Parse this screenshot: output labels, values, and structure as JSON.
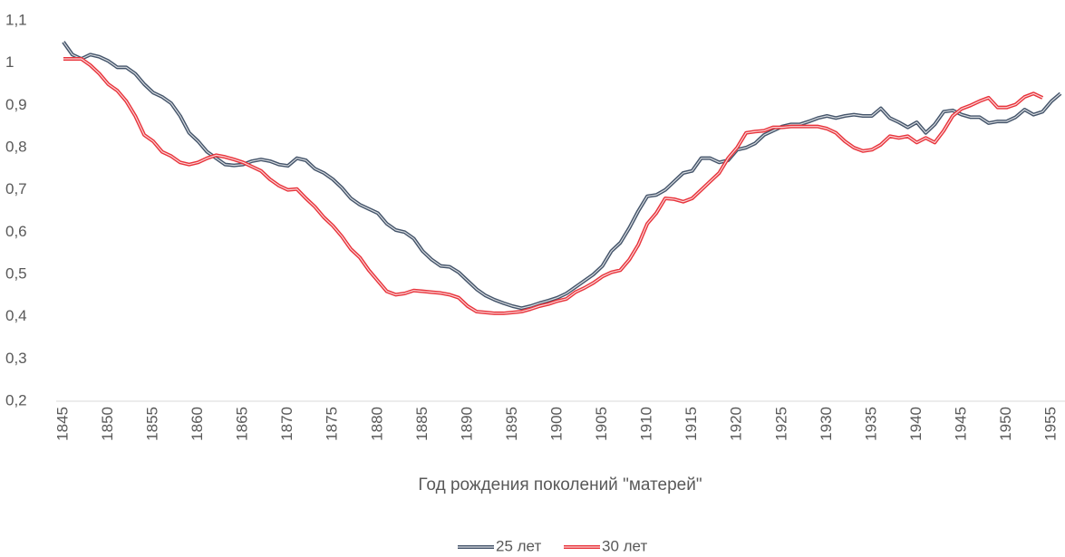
{
  "chart_data": {
    "type": "line",
    "x_label": "Год рождения поколений \"матерей\"",
    "x": [
      1845,
      1846,
      1847,
      1848,
      1849,
      1850,
      1851,
      1852,
      1853,
      1854,
      1855,
      1856,
      1857,
      1858,
      1859,
      1860,
      1861,
      1862,
      1863,
      1864,
      1865,
      1866,
      1867,
      1868,
      1869,
      1870,
      1871,
      1872,
      1873,
      1874,
      1875,
      1876,
      1877,
      1878,
      1879,
      1880,
      1881,
      1882,
      1883,
      1884,
      1885,
      1886,
      1887,
      1888,
      1889,
      1890,
      1891,
      1892,
      1893,
      1894,
      1895,
      1896,
      1897,
      1898,
      1899,
      1900,
      1901,
      1902,
      1903,
      1904,
      1905,
      1906,
      1907,
      1908,
      1909,
      1910,
      1911,
      1912,
      1913,
      1914,
      1915,
      1916,
      1917,
      1918,
      1919,
      1920,
      1921,
      1922,
      1923,
      1924,
      1925,
      1926,
      1927,
      1928,
      1929,
      1930,
      1931,
      1932,
      1933,
      1934,
      1935,
      1936,
      1937,
      1938,
      1939,
      1940,
      1941,
      1942,
      1943,
      1944,
      1945,
      1946,
      1947,
      1948,
      1949,
      1950,
      1951,
      1952,
      1953,
      1954,
      1955,
      1956
    ],
    "series": [
      {
        "name": "25 лет",
        "color": "#44546a",
        "values": [
          1.05,
          1.02,
          1.01,
          1.02,
          1.015,
          1.005,
          0.99,
          0.99,
          0.975,
          0.95,
          0.93,
          0.92,
          0.905,
          0.875,
          0.835,
          0.815,
          0.79,
          0.775,
          0.76,
          0.758,
          0.76,
          0.768,
          0.772,
          0.768,
          0.76,
          0.757,
          0.775,
          0.77,
          0.75,
          0.74,
          0.725,
          0.705,
          0.68,
          0.665,
          0.655,
          0.645,
          0.62,
          0.605,
          0.6,
          0.585,
          0.555,
          0.535,
          0.52,
          0.518,
          0.505,
          0.485,
          0.465,
          0.45,
          0.44,
          0.432,
          0.425,
          0.42,
          0.425,
          0.432,
          0.438,
          0.445,
          0.455,
          0.47,
          0.485,
          0.5,
          0.52,
          0.555,
          0.575,
          0.61,
          0.65,
          0.685,
          0.688,
          0.7,
          0.72,
          0.74,
          0.745,
          0.775,
          0.775,
          0.765,
          0.77,
          0.795,
          0.8,
          0.81,
          0.83,
          0.84,
          0.85,
          0.855,
          0.855,
          0.862,
          0.87,
          0.875,
          0.87,
          0.875,
          0.878,
          0.875,
          0.875,
          0.893,
          0.87,
          0.86,
          0.848,
          0.86,
          0.835,
          0.855,
          0.885,
          0.888,
          0.878,
          0.872,
          0.872,
          0.858,
          0.862,
          0.862,
          0.872,
          0.89,
          0.878,
          0.885,
          0.91,
          0.928
        ]
      },
      {
        "name": "30 лет",
        "color": "#e8333b",
        "values": [
          1.01,
          1.01,
          1.01,
          0.995,
          0.975,
          0.95,
          0.935,
          0.91,
          0.875,
          0.83,
          0.815,
          0.79,
          0.78,
          0.765,
          0.76,
          0.765,
          0.775,
          0.782,
          0.778,
          0.772,
          0.765,
          0.755,
          0.745,
          0.725,
          0.71,
          0.7,
          0.702,
          0.68,
          0.66,
          0.635,
          0.615,
          0.59,
          0.56,
          0.54,
          0.51,
          0.485,
          0.46,
          0.452,
          0.455,
          0.462,
          0.46,
          0.458,
          0.456,
          0.452,
          0.445,
          0.425,
          0.412,
          0.41,
          0.408,
          0.408,
          0.41,
          0.412,
          0.418,
          0.425,
          0.43,
          0.437,
          0.442,
          0.458,
          0.468,
          0.48,
          0.495,
          0.505,
          0.51,
          0.535,
          0.57,
          0.62,
          0.645,
          0.68,
          0.678,
          0.672,
          0.68,
          0.7,
          0.72,
          0.74,
          0.775,
          0.8,
          0.835,
          0.838,
          0.84,
          0.848,
          0.848,
          0.85,
          0.85,
          0.85,
          0.85,
          0.845,
          0.835,
          0.815,
          0.8,
          0.792,
          0.795,
          0.807,
          0.827,
          0.823,
          0.827,
          0.812,
          0.823,
          0.812,
          0.84,
          0.875,
          0.892,
          0.9,
          0.91,
          0.918,
          0.895,
          0.895,
          0.902,
          0.92,
          0.928,
          0.918,
          null,
          null
        ]
      }
    ],
    "xlim": [
      1844.2,
      1956.5
    ],
    "xticks": [
      1845,
      1850,
      1855,
      1860,
      1865,
      1870,
      1875,
      1880,
      1885,
      1890,
      1895,
      1900,
      1905,
      1910,
      1915,
      1920,
      1925,
      1930,
      1935,
      1940,
      1945,
      1950,
      1955
    ],
    "ylim": [
      0.2,
      1.1
    ],
    "yticks": [
      {
        "value": 0.2,
        "label": "0,2"
      },
      {
        "value": 0.3,
        "label": "0,3"
      },
      {
        "value": 0.4,
        "label": "0,4"
      },
      {
        "value": 0.5,
        "label": "0,5"
      },
      {
        "value": 0.6,
        "label": "0,6"
      },
      {
        "value": 0.7,
        "label": "0,7"
      },
      {
        "value": 0.8,
        "label": "0,8"
      },
      {
        "value": 0.9,
        "label": "0,9"
      },
      {
        "value": 1,
        "label": "1"
      },
      {
        "value": 1.1,
        "label": "1,1"
      }
    ],
    "grid": false,
    "legend": "bottom"
  }
}
